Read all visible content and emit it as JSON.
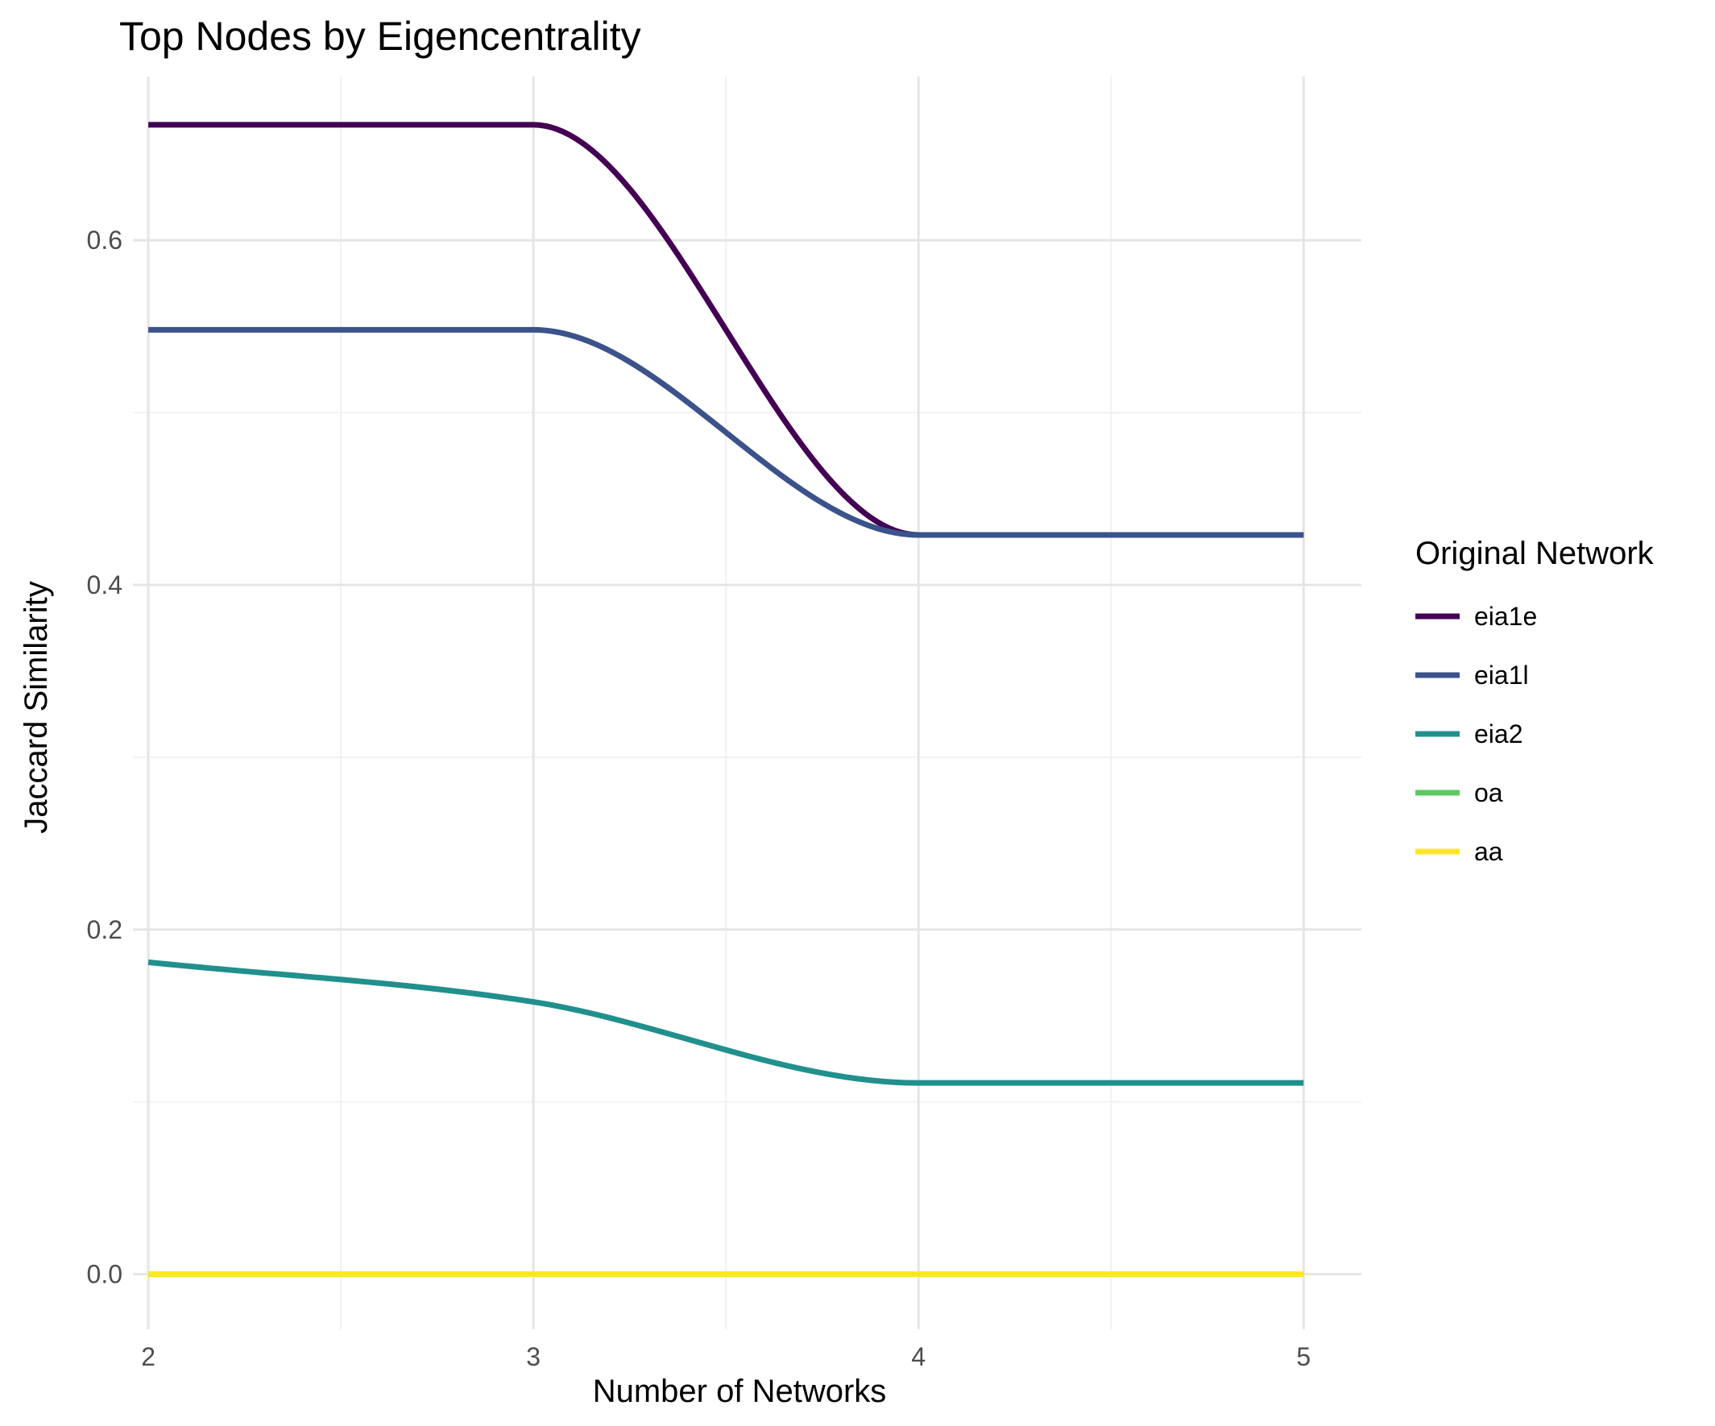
{
  "chart_data": {
    "type": "line",
    "title": "Top Nodes by Eigencentrality",
    "xlabel": "Number of Networks",
    "ylabel": "Jaccard Similarity",
    "x": [
      2,
      3,
      4,
      5
    ],
    "xlim": [
      1.96,
      5.15
    ],
    "ylim": [
      -0.032,
      0.695
    ],
    "x_ticks": [
      2,
      3,
      4,
      5
    ],
    "x_tick_labels": [
      "2",
      "3",
      "4",
      "5"
    ],
    "y_ticks": [
      0.0,
      0.2,
      0.4,
      0.6
    ],
    "y_tick_labels": [
      "0.0",
      "0.2",
      "0.4",
      "0.6"
    ],
    "y_minor_ticks": [
      0.1,
      0.3,
      0.5
    ],
    "x_minor_ticks": [
      2.5,
      3.5,
      4.5
    ],
    "grid": true,
    "smooth": true,
    "legend": {
      "title": "Original Network",
      "position": "right"
    },
    "series": [
      {
        "name": "eia1e",
        "color": "#440154",
        "values": [
          0.667,
          0.667,
          0.429,
          0.429
        ]
      },
      {
        "name": "eia1l",
        "color": "#3b528b",
        "values": [
          0.548,
          0.548,
          0.429,
          0.429
        ]
      },
      {
        "name": "eia2",
        "color": "#21908d",
        "values": [
          0.181,
          0.158,
          0.111,
          0.111
        ]
      },
      {
        "name": "oa",
        "color": "#5dc963",
        "values": [
          0.0,
          0.0,
          0.0,
          0.0
        ]
      },
      {
        "name": "aa",
        "color": "#fde725",
        "values": [
          0.0,
          0.0,
          0.0,
          0.0
        ]
      }
    ]
  }
}
